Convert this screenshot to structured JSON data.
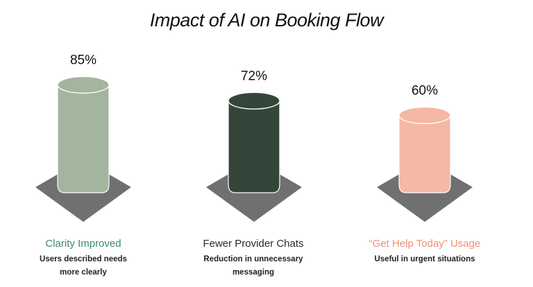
{
  "chart_data": {
    "type": "bar",
    "title": "Impact of AI on Booking Flow",
    "categories": [
      "Clarity Improved",
      "Fewer Provider Chats",
      "“Get Help Today” Usage"
    ],
    "values": [
      85,
      72,
      60
    ],
    "value_labels": [
      "85%",
      "72%",
      "60%"
    ],
    "unit": "%",
    "ylim": [
      0,
      100
    ],
    "descriptions": [
      [
        "Users described needs",
        "more clearly"
      ],
      [
        "Reduction in unnecessary",
        "messaging"
      ],
      [
        "Useful in urgent situations"
      ]
    ],
    "bar_colors": [
      "#a4b59f",
      "#34463a",
      "#f4b8a4"
    ],
    "title_colors": [
      "#3f8a6c",
      "#1f2a24",
      "#ef8f74"
    ],
    "base_color": "#707070",
    "grid": false,
    "legend": "none"
  }
}
